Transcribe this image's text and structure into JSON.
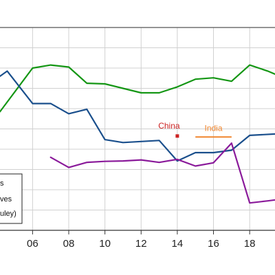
{
  "chart_data": {
    "type": "line",
    "title": "",
    "xlabel": "",
    "ylabel": "",
    "grid": true,
    "legend_position": "bottom-left",
    "xlim": [
      2004.2,
      2019.4
    ],
    "ylim": [
      0,
      10
    ],
    "x_ticks": [
      {
        "value": 2006,
        "label": "06"
      },
      {
        "value": 2008,
        "label": "08"
      },
      {
        "value": 2010,
        "label": "10"
      },
      {
        "value": 2012,
        "label": "12"
      },
      {
        "value": 2014,
        "label": "14"
      },
      {
        "value": 2016,
        "label": "16"
      },
      {
        "value": 2018,
        "label": "18"
      }
    ],
    "series": [
      {
        "name": "",
        "color": "#149614",
        "x": [
          2004.2,
          2006,
          2007,
          2008,
          2009,
          2010,
          2011,
          2012,
          2013,
          2014,
          2015,
          2016,
          2017,
          2018,
          2019,
          2019.4
        ],
        "values": [
          5.85,
          8.0,
          8.15,
          8.05,
          7.25,
          7.22,
          7.0,
          6.78,
          6.78,
          7.07,
          7.45,
          7.52,
          7.35,
          8.15,
          7.85,
          7.7
        ]
      },
      {
        "name": "",
        "color": "#1a4f8c",
        "x": [
          2004.2,
          2004.6,
          2006,
          2007,
          2008,
          2009,
          2010,
          2011,
          2012,
          2013,
          2014,
          2015,
          2016,
          2017,
          2018,
          2019.4
        ],
        "values": [
          7.6,
          7.85,
          6.25,
          6.25,
          5.75,
          5.97,
          4.47,
          4.33,
          4.38,
          4.43,
          3.42,
          3.83,
          3.83,
          3.95,
          4.68,
          4.75
        ]
      },
      {
        "name": "",
        "color": "#8a1a9a",
        "x": [
          2007,
          2008,
          2009,
          2010,
          2011,
          2012,
          2013,
          2014,
          2015,
          2016,
          2017,
          2018,
          2019,
          2019.4
        ],
        "values": [
          3.6,
          3.1,
          3.35,
          3.4,
          3.42,
          3.47,
          3.35,
          3.5,
          3.17,
          3.33,
          4.3,
          1.35,
          1.45,
          1.5
        ]
      }
    ],
    "annotations": [
      {
        "label": "China",
        "color": "#cc2222",
        "x": 2014,
        "y": 4.65,
        "marker": "square"
      },
      {
        "label": "India",
        "color": "#f0852d",
        "x_start": 2015,
        "x_end": 2017,
        "y": 4.6,
        "marker": "line"
      }
    ],
    "legend": {
      "entries": [
        "s",
        "ves",
        "uley)"
      ]
    }
  }
}
